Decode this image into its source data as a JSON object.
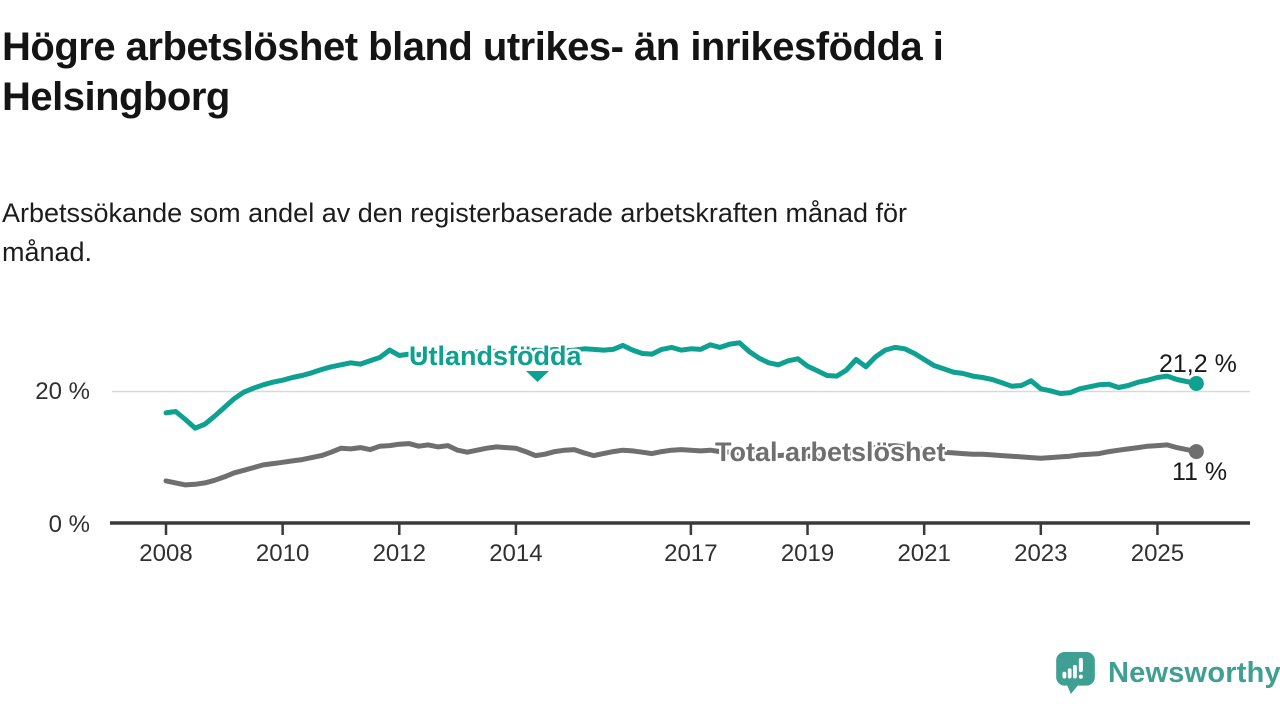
{
  "header": {
    "title_line1": "Högre arbetslöshet bland utrikes- än inrikesfödda i",
    "title_line2": "Helsingborg",
    "subtitle_line1": "Arbetssökande som andel av den registerbaserade arbetskraften månad för",
    "subtitle_line2": "månad."
  },
  "footer": {
    "brand": "Newsworthy"
  },
  "colors": {
    "series_foreign": "#0ea191",
    "series_total": "#6f6f6f",
    "axis": "#3a3a3a",
    "gridline": "#d9d9d9",
    "logo_teal": "#3f9f92"
  },
  "chart_data": {
    "type": "line",
    "title": "Högre arbetslöshet bland utrikes- än inrikesfödda i Helsingborg",
    "subtitle": "Arbetssökande som andel av den registerbaserade arbetskraften månad för månad.",
    "x_start": 2008.0,
    "x_step_years": 0.16667,
    "xlim": [
      2007.0,
      2026.6
    ],
    "ylim": [
      0,
      29
    ],
    "grid": "horizontal-at-20-only",
    "legend_position": "inline-labels-on-lines",
    "x_ticks": [
      {
        "value": 2008,
        "label": "2008"
      },
      {
        "value": 2010,
        "label": "2010"
      },
      {
        "value": 2012,
        "label": "2012"
      },
      {
        "value": 2014,
        "label": "2014"
      },
      {
        "value": 2017,
        "label": "2017"
      },
      {
        "value": 2019,
        "label": "2019"
      },
      {
        "value": 2021,
        "label": "2021"
      },
      {
        "value": 2023,
        "label": "2023"
      },
      {
        "value": 2025,
        "label": "2025"
      }
    ],
    "y_ticks": [
      {
        "value": 20,
        "label": "20 %"
      },
      {
        "value": 0,
        "label": "0 %"
      }
    ],
    "series": [
      {
        "name": "Utlandsfödda",
        "color": "#0ea191",
        "end_label": "21,2 %",
        "values": [
          16.8,
          17.0,
          15.8,
          14.5,
          15.1,
          16.3,
          17.6,
          18.9,
          19.9,
          20.5,
          21.0,
          21.4,
          21.7,
          22.1,
          22.4,
          22.8,
          23.3,
          23.7,
          24.0,
          24.3,
          24.1,
          24.6,
          25.1,
          26.2,
          25.4,
          25.6,
          25.5,
          25.8,
          25.7,
          25.9,
          25.8,
          26.0,
          25.9,
          26.1,
          26.0,
          25.9,
          26.1,
          26.0,
          26.2,
          26.1,
          26.3,
          26.1,
          26.2,
          26.4,
          26.3,
          26.2,
          26.3,
          26.9,
          26.2,
          25.7,
          25.6,
          26.3,
          26.6,
          26.2,
          26.4,
          26.3,
          27.0,
          26.6,
          27.1,
          27.3,
          26.0,
          25.0,
          24.3,
          24.0,
          24.6,
          24.9,
          23.8,
          23.1,
          22.4,
          22.3,
          23.2,
          24.8,
          23.7,
          25.2,
          26.2,
          26.6,
          26.4,
          25.7,
          24.8,
          23.9,
          23.4,
          22.9,
          22.7,
          22.3,
          22.1,
          21.8,
          21.3,
          20.8,
          20.9,
          21.6,
          20.4,
          20.1,
          19.7,
          19.8,
          20.4,
          20.7,
          21.0,
          21.1,
          20.6,
          20.9,
          21.4,
          21.7,
          22.1,
          22.3,
          21.8,
          21.5,
          21.2
        ]
      },
      {
        "name": "Total arbetslöshet",
        "color": "#6f6f6f",
        "end_label": "11 %",
        "values": [
          6.6,
          6.3,
          6.0,
          6.1,
          6.3,
          6.7,
          7.2,
          7.8,
          8.2,
          8.6,
          9.0,
          9.2,
          9.4,
          9.6,
          9.8,
          10.1,
          10.4,
          10.9,
          11.5,
          11.4,
          11.6,
          11.3,
          11.8,
          11.9,
          12.1,
          12.2,
          11.8,
          12.0,
          11.7,
          11.9,
          11.2,
          10.9,
          11.2,
          11.5,
          11.7,
          11.6,
          11.5,
          11.0,
          10.4,
          10.6,
          11.0,
          11.2,
          11.3,
          10.8,
          10.4,
          10.7,
          11.0,
          11.2,
          11.1,
          10.9,
          10.7,
          11.0,
          11.2,
          11.3,
          11.2,
          11.1,
          11.2,
          11.0,
          10.9,
          10.8,
          10.7,
          10.6,
          10.5,
          10.4,
          10.5,
          10.4,
          10.3,
          10.3,
          10.4,
          10.5,
          10.7,
          11.0,
          11.3,
          11.6,
          11.8,
          11.9,
          11.7,
          11.5,
          11.3,
          11.1,
          10.9,
          10.8,
          10.7,
          10.6,
          10.6,
          10.5,
          10.4,
          10.3,
          10.2,
          10.1,
          10.0,
          10.1,
          10.2,
          10.3,
          10.5,
          10.6,
          10.7,
          11.0,
          11.2,
          11.4,
          11.6,
          11.8,
          11.9,
          12.0,
          11.6,
          11.3,
          11.0
        ]
      }
    ]
  }
}
